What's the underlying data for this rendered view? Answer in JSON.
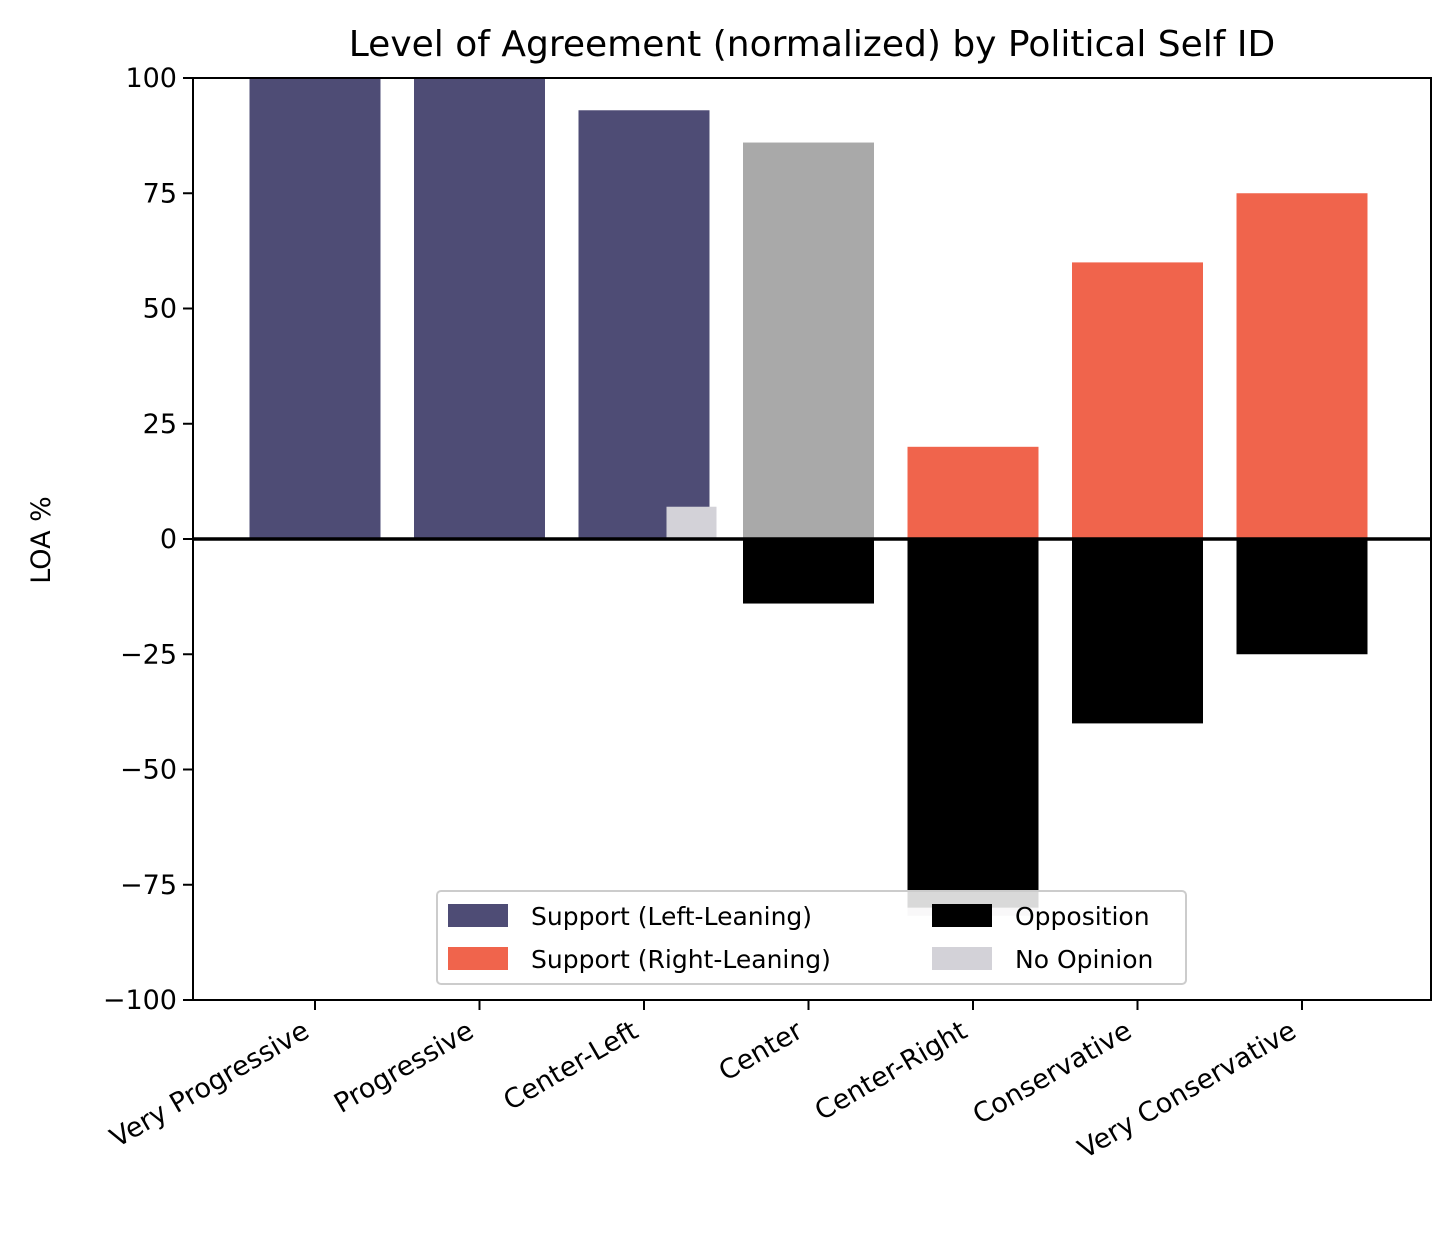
{
  "chart_data": {
    "type": "bar",
    "title": "Level of Agreement (normalized) by Political Self ID",
    "xlabel": "",
    "ylabel": "LOA %",
    "ylim": [
      -100,
      100
    ],
    "yticks": [
      100,
      75,
      50,
      25,
      0,
      -25,
      -50,
      -75,
      -100
    ],
    "ytick_labels": [
      "100",
      "75",
      "50",
      "25",
      "0",
      "−25",
      "−50",
      "−75",
      "−100"
    ],
    "categories": [
      "Very Progressive",
      "Progressive",
      "Center-Left",
      "Center",
      "Center-Right",
      "Conservative",
      "Very Conservative"
    ],
    "bars": [
      {
        "category": "Very Progressive",
        "support": 100,
        "support_type": "left",
        "opposition": 0,
        "no_opinion": 0
      },
      {
        "category": "Progressive",
        "support": 100,
        "support_type": "left",
        "opposition": 0,
        "no_opinion": 0
      },
      {
        "category": "Center-Left",
        "support": 93,
        "support_type": "left",
        "opposition": 0,
        "no_opinion": 7
      },
      {
        "category": "Center",
        "support": 86,
        "support_type": "center",
        "opposition": -14,
        "no_opinion": 0
      },
      {
        "category": "Center-Right",
        "support": 20,
        "support_type": "right",
        "opposition": -80,
        "no_opinion": 0
      },
      {
        "category": "Conservative",
        "support": 60,
        "support_type": "right",
        "opposition": -40,
        "no_opinion": 0
      },
      {
        "category": "Very Conservative",
        "support": 75,
        "support_type": "right",
        "opposition": -25,
        "no_opinion": 0
      }
    ],
    "legend": {
      "placement": "lower-center",
      "entries": [
        {
          "key": "left",
          "label": "Support (Left-Leaning)",
          "color": "#4e4c75"
        },
        {
          "key": "opposition",
          "label": "Opposition",
          "color": "#000000"
        },
        {
          "key": "right",
          "label": "Support (Right-Leaning)",
          "color": "#f0644c"
        },
        {
          "key": "no_opinion",
          "label": "No Opinion",
          "color": "#d3d2d8"
        }
      ]
    },
    "colors": {
      "left": "#4e4c75",
      "right": "#f0644c",
      "center": "#a9a9a9",
      "opposition": "#000000",
      "no_opinion": "#d3d2d8"
    }
  }
}
